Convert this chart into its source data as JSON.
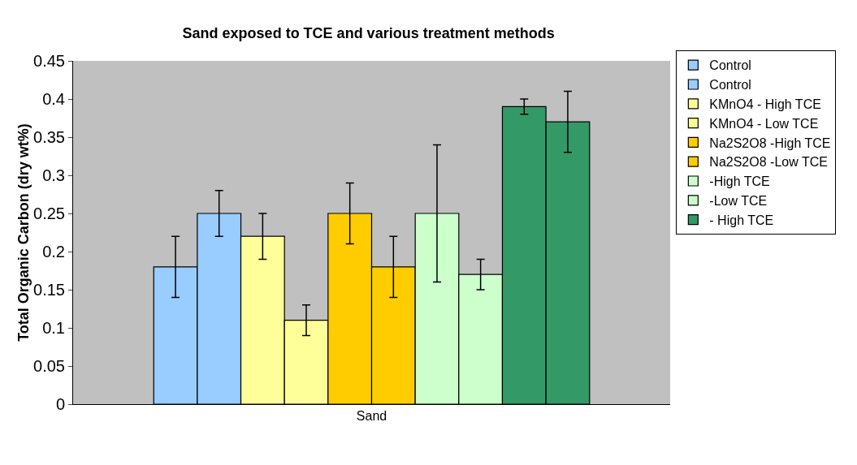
{
  "chart_data": {
    "type": "bar",
    "title": "Sand exposed to TCE and various treatment methods",
    "ylabel": "Total Organic Carbon (dry wt%)",
    "categories": [
      "Sand"
    ],
    "series": [
      {
        "name": "Control",
        "color": "#99ccff",
        "values": [
          0.18
        ],
        "errors": [
          0.04
        ]
      },
      {
        "name": "Control",
        "color": "#99ccff",
        "values": [
          0.25
        ],
        "errors": [
          0.03
        ]
      },
      {
        "name": "KMnO4 - High TCE",
        "color": "#ffff99",
        "values": [
          0.22
        ],
        "errors": [
          0.03
        ]
      },
      {
        "name": "KMnO4 - Low TCE",
        "color": "#ffff99",
        "values": [
          0.11
        ],
        "errors": [
          0.02
        ]
      },
      {
        "name": "Na2S2O8 -High TCE",
        "color": "#ffcc00",
        "values": [
          0.25
        ],
        "errors": [
          0.04
        ]
      },
      {
        "name": "Na2S2O8 -Low TCE",
        "color": "#ffcc00",
        "values": [
          0.18
        ],
        "errors": [
          0.04
        ]
      },
      {
        "name": "-High TCE",
        "color": "#ccffcc",
        "values": [
          0.25
        ],
        "errors": [
          0.09
        ]
      },
      {
        "name": "-Low TCE",
        "color": "#ccffcc",
        "values": [
          0.17
        ],
        "errors": [
          0.02
        ]
      },
      {
        "name": "- High TCE",
        "color": "#339966",
        "values": [
          0.39
        ],
        "errors": [
          0.01
        ]
      },
      {
        "color": "#339966",
        "values": [
          0.37
        ],
        "errors": [
          0.04
        ]
      }
    ],
    "ylim": [
      0,
      0.45
    ],
    "yticks": [
      0,
      {
        "value": 0.05,
        "label": "0.05"
      },
      {
        "value": 0.1,
        "label": "0.1"
      },
      {
        "value": 0.15,
        "label": "0.15"
      },
      {
        "value": 0.2,
        "label": "0.2"
      },
      {
        "value": 0.25,
        "label": "0.25"
      },
      {
        "value": 0.3,
        "label": "0.3"
      },
      {
        "value": 0.35,
        "label": "0.35"
      },
      {
        "value": 0.4,
        "label": "0.4"
      },
      {
        "value": 0.45,
        "label": "0.45"
      }
    ],
    "grid": false,
    "legend": "right"
  }
}
